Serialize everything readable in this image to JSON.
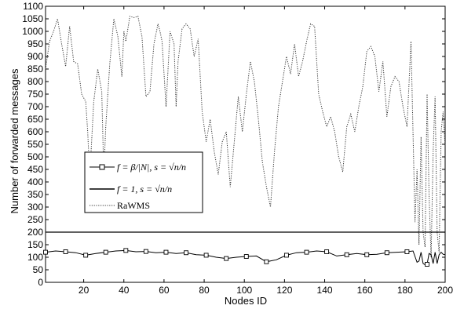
{
  "chart_data": {
    "type": "line",
    "title": "",
    "xlabel": "Nodes ID",
    "ylabel": "Number of forwarded messages",
    "xlim": [
      1,
      200
    ],
    "ylim": [
      0,
      1100
    ],
    "xticks": [
      20,
      40,
      60,
      80,
      100,
      120,
      140,
      160,
      180,
      200
    ],
    "yticks": [
      0,
      50,
      100,
      150,
      200,
      250,
      300,
      350,
      400,
      450,
      500,
      550,
      600,
      650,
      700,
      750,
      800,
      850,
      900,
      950,
      1000,
      1050,
      1100
    ],
    "grid": false,
    "legend_position": "center-left",
    "legend": [
      {
        "label": "f = β/|N|, s = √n/n",
        "style": "solid-square-markers"
      },
      {
        "label": "f = 1, s = √n/n",
        "style": "solid"
      },
      {
        "label": "RaWMS",
        "style": "dotted"
      }
    ],
    "series": [
      {
        "name": "RaWMS",
        "style": "dotted",
        "x": [
          1,
          3,
          5,
          7,
          9,
          11,
          13,
          15,
          17,
          19,
          21,
          22,
          23,
          25,
          27,
          29,
          30,
          31,
          33,
          35,
          37,
          39,
          40,
          41,
          43,
          45,
          47,
          49,
          51,
          53,
          55,
          57,
          58,
          59,
          61,
          63,
          65,
          66,
          67,
          69,
          71,
          73,
          75,
          77,
          79,
          81,
          83,
          85,
          87,
          89,
          91,
          93,
          95,
          97,
          99,
          101,
          103,
          105,
          107,
          109,
          111,
          113,
          115,
          117,
          119,
          121,
          123,
          125,
          127,
          129,
          131,
          133,
          135,
          137,
          139,
          141,
          143,
          145,
          147,
          149,
          151,
          153,
          155,
          157,
          159,
          161,
          163,
          165,
          167,
          169,
          171,
          173,
          175,
          177,
          179,
          181,
          183,
          185,
          186,
          187,
          188,
          189,
          190,
          191,
          192,
          193,
          194,
          195,
          196,
          197,
          198,
          199,
          200
        ],
        "y": [
          850,
          960,
          1000,
          1050,
          950,
          860,
          1020,
          880,
          870,
          750,
          720,
          600,
          420,
          720,
          850,
          760,
          430,
          620,
          870,
          1050,
          980,
          820,
          1000,
          960,
          1060,
          1055,
          1060,
          980,
          740,
          760,
          950,
          1030,
          1000,
          960,
          700,
          1000,
          950,
          700,
          880,
          1010,
          1030,
          1010,
          900,
          970,
          680,
          560,
          650,
          520,
          430,
          560,
          600,
          380,
          560,
          740,
          600,
          750,
          880,
          800,
          650,
          480,
          380,
          300,
          520,
          700,
          800,
          900,
          830,
          950,
          820,
          880,
          960,
          1030,
          1020,
          750,
          680,
          620,
          660,
          600,
          500,
          440,
          620,
          670,
          600,
          700,
          780,
          920,
          940,
          900,
          760,
          880,
          660,
          780,
          820,
          800,
          700,
          620,
          960,
          240,
          450,
          150,
          580,
          200,
          140,
          750,
          350,
          100,
          520,
          740,
          200,
          120,
          600,
          680,
          540
        ]
      },
      {
        "name": "f = 1, s = √n/n",
        "style": "solid",
        "x": [
          1,
          200
        ],
        "y": [
          200,
          200
        ]
      },
      {
        "name": "f = β/|N|, s = √n/n",
        "style": "solid-square-markers",
        "marker_x": [
          1,
          11,
          21,
          31,
          41,
          51,
          61,
          71,
          81,
          91,
          101,
          111,
          121,
          131,
          141,
          151,
          161,
          171,
          181,
          191
        ],
        "x": [
          1,
          6,
          11,
          16,
          21,
          26,
          31,
          36,
          41,
          46,
          51,
          56,
          61,
          66,
          71,
          76,
          81,
          86,
          91,
          96,
          101,
          106,
          111,
          116,
          121,
          126,
          131,
          136,
          141,
          146,
          151,
          156,
          161,
          166,
          171,
          176,
          181,
          184,
          186,
          187,
          188,
          189,
          190,
          191,
          192,
          193,
          194,
          195,
          196,
          197,
          198,
          199,
          200
        ],
        "y": [
          120,
          125,
          122,
          118,
          108,
          115,
          120,
          125,
          127,
          122,
          123,
          118,
          120,
          115,
          118,
          110,
          108,
          100,
          95,
          100,
          103,
          105,
          82,
          90,
          108,
          118,
          120,
          125,
          122,
          105,
          110,
          115,
          110,
          112,
          118,
          120,
          122,
          125,
          80,
          85,
          120,
          75,
          70,
          72,
          115,
          110,
          75,
          120,
          75,
          110,
          120,
          112,
          110
        ]
      }
    ]
  }
}
